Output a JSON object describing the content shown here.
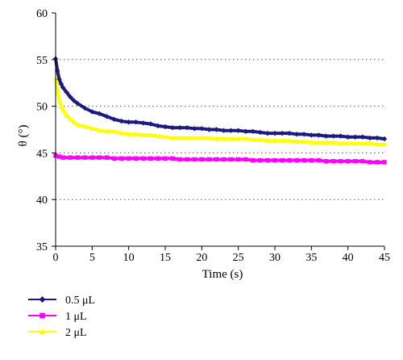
{
  "chart_data": {
    "type": "line",
    "title": "",
    "xlabel": "Time (s)",
    "ylabel": "θ (°)",
    "xlim": [
      0,
      45
    ],
    "ylim": [
      35,
      60
    ],
    "x_ticks": [
      0,
      5,
      10,
      15,
      20,
      25,
      30,
      35,
      40,
      45
    ],
    "y_ticks": [
      35,
      40,
      45,
      50,
      55,
      60
    ],
    "grid": "horizontal dotted",
    "legend_position": "bottom-left",
    "series": [
      {
        "name": "0.5 μL",
        "color": "#1a1a80",
        "marker": "diamond",
        "x": [
          0,
          0.25,
          0.5,
          0.75,
          1,
          1.5,
          2,
          2.5,
          3,
          4,
          5,
          6,
          7,
          8,
          9,
          10,
          11,
          12,
          13,
          14,
          15,
          16,
          17,
          18,
          19,
          20,
          21,
          22,
          23,
          24,
          25,
          26,
          27,
          28,
          29,
          30,
          31,
          32,
          33,
          34,
          35,
          36,
          37,
          38,
          39,
          40,
          41,
          42,
          43,
          44,
          45
        ],
        "y": [
          55.1,
          53.8,
          52.9,
          52.4,
          52.0,
          51.5,
          51.0,
          50.6,
          50.3,
          49.8,
          49.4,
          49.2,
          48.9,
          48.6,
          48.4,
          48.3,
          48.3,
          48.2,
          48.1,
          47.9,
          47.8,
          47.7,
          47.7,
          47.7,
          47.6,
          47.6,
          47.5,
          47.5,
          47.4,
          47.4,
          47.4,
          47.3,
          47.3,
          47.2,
          47.1,
          47.1,
          47.1,
          47.1,
          47.0,
          47.0,
          46.9,
          46.9,
          46.8,
          46.8,
          46.8,
          46.7,
          46.7,
          46.7,
          46.6,
          46.6,
          46.5
        ]
      },
      {
        "name": "1 μL",
        "color": "#ff00ff",
        "marker": "square",
        "x": [
          0,
          0.5,
          1,
          2,
          3,
          4,
          5,
          6,
          7,
          8,
          9,
          10,
          11,
          12,
          13,
          14,
          15,
          16,
          17,
          18,
          19,
          20,
          21,
          22,
          23,
          24,
          25,
          26,
          27,
          28,
          29,
          30,
          31,
          32,
          33,
          34,
          35,
          36,
          37,
          38,
          39,
          40,
          41,
          42,
          43,
          44,
          45
        ],
        "y": [
          44.7,
          44.6,
          44.5,
          44.5,
          44.5,
          44.5,
          44.5,
          44.5,
          44.5,
          44.4,
          44.4,
          44.4,
          44.4,
          44.4,
          44.4,
          44.4,
          44.4,
          44.4,
          44.3,
          44.3,
          44.3,
          44.3,
          44.3,
          44.3,
          44.3,
          44.3,
          44.3,
          44.3,
          44.2,
          44.2,
          44.2,
          44.2,
          44.2,
          44.2,
          44.2,
          44.2,
          44.2,
          44.2,
          44.1,
          44.1,
          44.1,
          44.1,
          44.1,
          44.1,
          44.0,
          44.0,
          44.0
        ]
      },
      {
        "name": "2 μL",
        "color": "#ffff00",
        "marker": "triangle",
        "x": [
          0,
          0.25,
          0.5,
          0.75,
          1,
          1.5,
          2,
          2.5,
          3,
          4,
          5,
          6,
          7,
          8,
          9,
          10,
          11,
          12,
          13,
          14,
          15,
          16,
          17,
          18,
          19,
          20,
          21,
          22,
          23,
          24,
          25,
          26,
          27,
          28,
          29,
          30,
          31,
          32,
          33,
          34,
          35,
          36,
          37,
          38,
          39,
          40,
          41,
          42,
          43,
          44,
          45
        ],
        "y": [
          53.0,
          51.5,
          50.6,
          50.0,
          49.6,
          49.0,
          48.6,
          48.3,
          48.0,
          47.8,
          47.6,
          47.4,
          47.3,
          47.3,
          47.1,
          47.0,
          47.0,
          46.9,
          46.9,
          46.8,
          46.7,
          46.6,
          46.6,
          46.6,
          46.6,
          46.6,
          46.6,
          46.5,
          46.5,
          46.5,
          46.5,
          46.5,
          46.4,
          46.4,
          46.3,
          46.3,
          46.3,
          46.3,
          46.2,
          46.2,
          46.1,
          46.1,
          46.1,
          46.1,
          46.0,
          46.0,
          46.0,
          46.0,
          46.0,
          45.9,
          45.9
        ]
      }
    ]
  }
}
